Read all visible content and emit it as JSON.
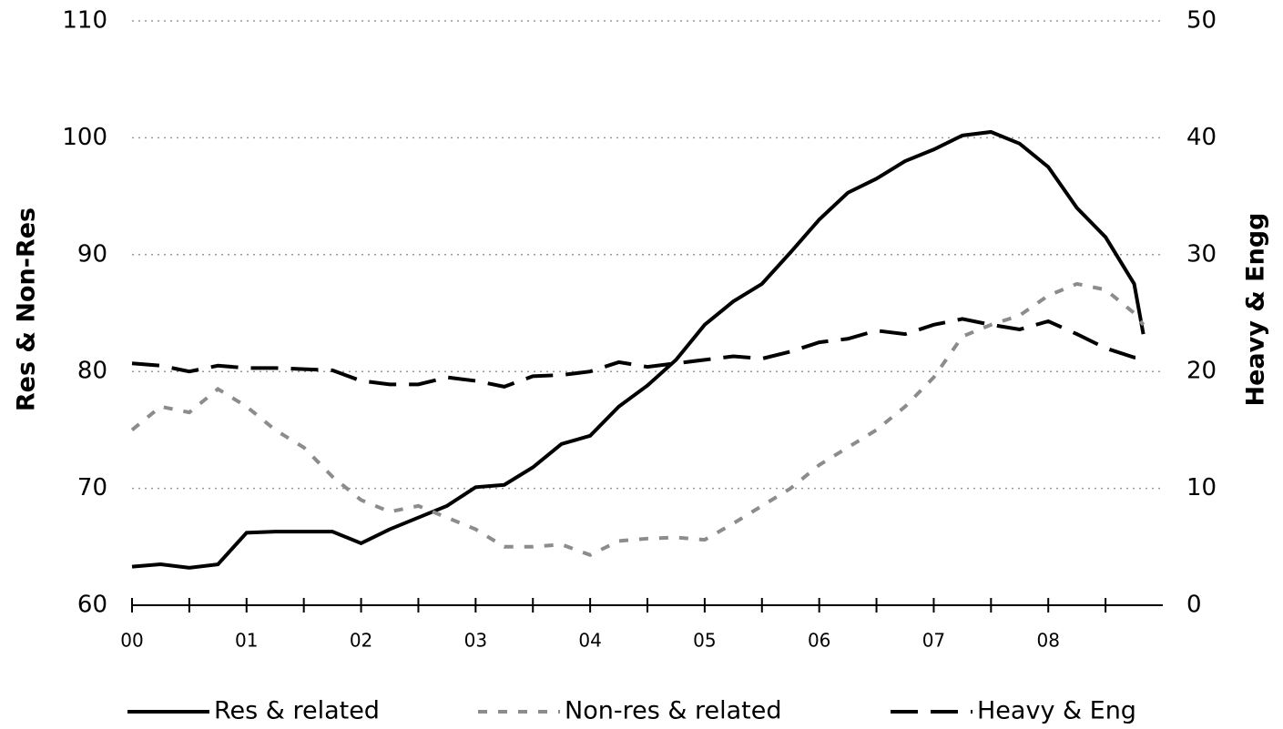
{
  "chart_data": {
    "type": "line",
    "ylabel": "Res & Non-Res",
    "y2label": "Heavy & Engg",
    "x": [
      0,
      0.25,
      0.5,
      0.75,
      1,
      1.25,
      1.5,
      1.75,
      2,
      2.25,
      2.5,
      2.75,
      3,
      3.25,
      3.5,
      3.75,
      4,
      4.25,
      4.5,
      4.75,
      5,
      5.25,
      5.5,
      5.75,
      6,
      6.25,
      6.5,
      6.75,
      7,
      7.25,
      7.5,
      7.75,
      8,
      8.25,
      8.5,
      8.75,
      8.83
    ],
    "xlim": [
      0,
      9
    ],
    "xticks": [
      {
        "value": 0,
        "label": "00"
      },
      {
        "value": 1,
        "label": "01"
      },
      {
        "value": 2,
        "label": "02"
      },
      {
        "value": 3,
        "label": "03"
      },
      {
        "value": 4,
        "label": "04"
      },
      {
        "value": 5,
        "label": "05"
      },
      {
        "value": 6,
        "label": "06"
      },
      {
        "value": 7,
        "label": "07"
      },
      {
        "value": 8,
        "label": "08"
      }
    ],
    "xticks_minor": [
      0.5,
      1.5,
      2.5,
      3.5,
      4.5,
      5.5,
      6.5,
      7.5,
      8.5
    ],
    "ylim": [
      60,
      110
    ],
    "yticks": [
      60,
      70,
      80,
      90,
      100,
      110
    ],
    "y2lim": [
      0,
      50
    ],
    "y2ticks": [
      0,
      10,
      20,
      30,
      40,
      50
    ],
    "grid": true,
    "legend": "bottom",
    "series": [
      {
        "name": "Res & related",
        "color": "#000000",
        "dash": "solid",
        "values": [
          63.3,
          63.5,
          63.2,
          63.5,
          66.2,
          66.3,
          66.3,
          66.3,
          65.3,
          66.5,
          67.5,
          68.5,
          70.1,
          70.3,
          71.8,
          73.8,
          74.5,
          77,
          78.8,
          81,
          84,
          86,
          87.5,
          90.2,
          93,
          95.3,
          96.5,
          98,
          99,
          100.2,
          100.5,
          99.5,
          97.5,
          94,
          91.5,
          87.5,
          83.2
        ]
      },
      {
        "name": "Non-res & related",
        "color": "#8c8c8c",
        "dash": "short",
        "values": [
          75,
          77,
          76.5,
          78.5,
          77,
          75,
          73.5,
          71,
          69,
          68,
          68.5,
          67.5,
          66.5,
          65,
          65,
          65.2,
          64.3,
          65.5,
          65.7,
          65.8,
          65.6,
          67,
          68.5,
          70,
          72,
          73.5,
          75,
          77,
          79.5,
          83,
          84,
          84.8,
          86.5,
          87.5,
          87,
          85,
          84
        ]
      },
      {
        "name": "Heavy & Eng",
        "color": "#000000",
        "dash": "long",
        "axis": "y2",
        "values": [
          20.7,
          20.5,
          20,
          20.5,
          20.3,
          20.3,
          20.2,
          20.1,
          19.2,
          18.9,
          18.9,
          19.5,
          19.2,
          18.7,
          19.6,
          19.7,
          20,
          20.8,
          20.4,
          20.7,
          21,
          21.3,
          21.1,
          21.7,
          22.5,
          22.8,
          23.5,
          23.2,
          24,
          24.5,
          24,
          23.6,
          24.3,
          23.2,
          22,
          21.2,
          21.2
        ]
      }
    ]
  }
}
